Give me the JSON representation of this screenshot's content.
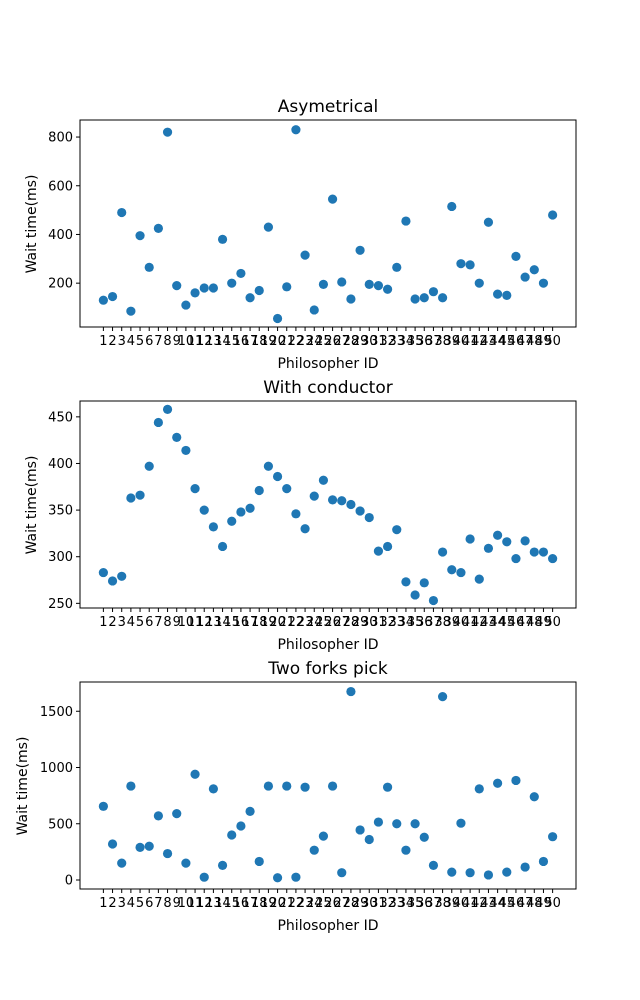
{
  "chart_data": [
    {
      "type": "scatter",
      "title": "Asymetrical",
      "xlabel": "Philosopher ID",
      "ylabel": "Wait time(ms)",
      "x": [
        1,
        2,
        3,
        4,
        5,
        6,
        7,
        8,
        9,
        10,
        11,
        12,
        13,
        14,
        15,
        16,
        17,
        18,
        19,
        20,
        21,
        22,
        23,
        24,
        25,
        26,
        27,
        28,
        29,
        30,
        31,
        32,
        33,
        34,
        35,
        36,
        37,
        38,
        39,
        40,
        41,
        42,
        43,
        44,
        45,
        46,
        47,
        48,
        49,
        50
      ],
      "values": [
        130,
        145,
        490,
        85,
        395,
        265,
        425,
        820,
        190,
        110,
        160,
        180,
        180,
        380,
        200,
        240,
        140,
        170,
        430,
        55,
        185,
        830,
        315,
        90,
        195,
        545,
        205,
        135,
        335,
        195,
        190,
        175,
        265,
        455,
        135,
        140,
        165,
        140,
        515,
        280,
        275,
        200,
        450,
        155,
        150,
        310,
        225,
        255,
        200,
        480
      ],
      "ylim": [
        20,
        870
      ],
      "yticks": [
        200,
        400,
        600,
        800
      ],
      "color": "#1f77b4",
      "grid": false
    },
    {
      "type": "scatter",
      "title": "With conductor",
      "xlabel": "Philosopher ID",
      "ylabel": "Wait time(ms)",
      "x": [
        1,
        2,
        3,
        4,
        5,
        6,
        7,
        8,
        9,
        10,
        11,
        12,
        13,
        14,
        15,
        16,
        17,
        18,
        19,
        20,
        21,
        22,
        23,
        24,
        25,
        26,
        27,
        28,
        29,
        30,
        31,
        32,
        33,
        34,
        35,
        36,
        37,
        38,
        39,
        40,
        41,
        42,
        43,
        44,
        45,
        46,
        47,
        48,
        49,
        50
      ],
      "values": [
        283,
        274,
        279,
        363,
        366,
        397,
        444,
        458,
        428,
        414,
        373,
        350,
        332,
        311,
        338,
        348,
        352,
        371,
        397,
        386,
        373,
        346,
        330,
        365,
        382,
        361,
        360,
        356,
        349,
        342,
        306,
        311,
        329,
        273,
        259,
        272,
        253,
        305,
        286,
        283,
        319,
        276,
        309,
        323,
        316,
        298,
        317,
        305,
        305,
        298
      ],
      "ylim": [
        245,
        467
      ],
      "yticks": [
        250,
        300,
        350,
        400,
        450
      ],
      "color": "#1f77b4",
      "grid": false
    },
    {
      "type": "scatter",
      "title": "Two forks pick",
      "xlabel": "Philosopher ID",
      "ylabel": "Wait time(ms)",
      "x": [
        1,
        2,
        3,
        4,
        5,
        6,
        7,
        8,
        9,
        10,
        11,
        12,
        13,
        14,
        15,
        16,
        17,
        18,
        19,
        20,
        21,
        22,
        23,
        24,
        25,
        26,
        27,
        28,
        29,
        30,
        31,
        32,
        33,
        34,
        35,
        36,
        37,
        38,
        39,
        40,
        41,
        42,
        43,
        44,
        45,
        46,
        47,
        48,
        49,
        50
      ],
      "values": [
        655,
        320,
        150,
        835,
        290,
        300,
        570,
        235,
        590,
        150,
        940,
        25,
        810,
        130,
        400,
        480,
        610,
        165,
        835,
        20,
        835,
        25,
        825,
        265,
        390,
        835,
        65,
        1675,
        445,
        360,
        515,
        825,
        500,
        265,
        500,
        380,
        130,
        1630,
        70,
        505,
        65,
        810,
        45,
        860,
        70,
        885,
        115,
        740,
        165,
        385
      ],
      "ylim": [
        -80,
        1760
      ],
      "yticks": [
        0,
        500,
        1000,
        1500
      ],
      "color": "#1f77b4",
      "grid": false
    }
  ]
}
